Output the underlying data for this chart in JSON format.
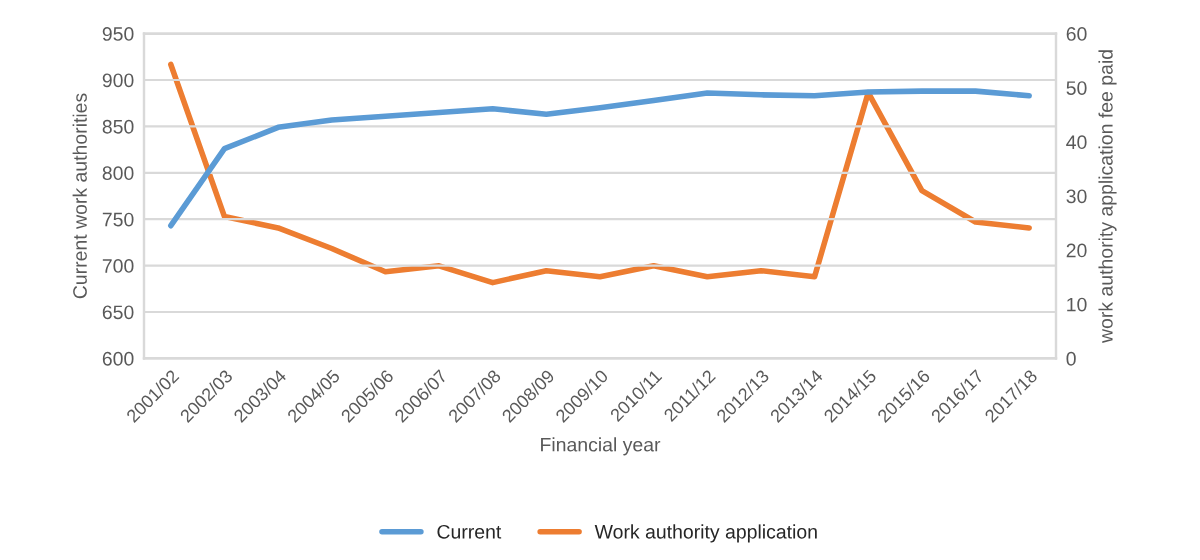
{
  "chart_data": {
    "type": "line",
    "categories": [
      "2001/02",
      "2002/03",
      "2003/04",
      "2004/05",
      "2005/06",
      "2006/07",
      "2007/08",
      "2008/09",
      "2009/10",
      "2010/11",
      "2011/12",
      "2012/13",
      "2013/14",
      "2014/15",
      "2015/16",
      "2016/17",
      "2017/18"
    ],
    "series": [
      {
        "name": "Current",
        "color": "#5b9bd5",
        "values": [
          743,
          826,
          849,
          857,
          861,
          865,
          869,
          863,
          870,
          878,
          886,
          884,
          883,
          887,
          888,
          888,
          883
        ]
      },
      {
        "name": "Work authority application",
        "color": "#ed7d31",
        "axis": "y2",
        "values": [
          54.3,
          26.2,
          24.1,
          20.3,
          16,
          17.1,
          14,
          16.2,
          15.1,
          17.1,
          15.1,
          16.2,
          15.1,
          49.1,
          31,
          25.2,
          24.1
        ]
      }
    ],
    "xlabel": "Financial year",
    "ylabel": "Current work authorities",
    "y2label": "work authority application fee paid",
    "ylim": [
      600,
      950
    ],
    "yticks": [
      600,
      650,
      700,
      750,
      800,
      850,
      900,
      950
    ],
    "y2lim": [
      0,
      60
    ],
    "y2ticks": [
      0,
      10,
      20,
      30,
      40,
      50,
      60
    ],
    "grid": "y",
    "legend": "bottom",
    "marker": "none",
    "line_style": "solid"
  }
}
